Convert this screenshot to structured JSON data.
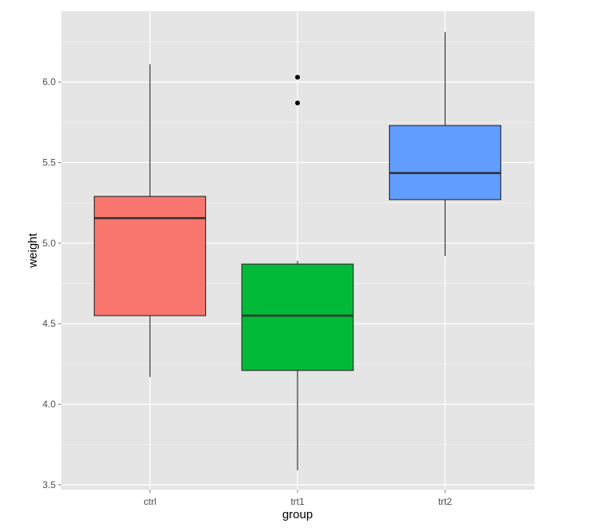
{
  "chart_data": {
    "type": "boxplot",
    "xlabel": "group",
    "ylabel": "weight",
    "ylim": [
      3.47,
      6.44
    ],
    "yticks": [
      3.5,
      4.0,
      4.5,
      5.0,
      5.5,
      6.0
    ],
    "ytick_labels": [
      "3.5",
      "4.0",
      "4.5",
      "5.0",
      "5.5",
      "6.0"
    ],
    "categories": [
      "ctrl",
      "trt1",
      "trt2"
    ],
    "grid": true,
    "legend": "none",
    "boxes": [
      {
        "category": "ctrl",
        "whisker_low": 4.17,
        "q1": 4.55,
        "median": 5.155,
        "q3": 5.29,
        "whisker_high": 6.11,
        "outliers": [],
        "fill": "#F8766D"
      },
      {
        "category": "trt1",
        "whisker_low": 3.59,
        "q1": 4.21,
        "median": 4.55,
        "q3": 4.87,
        "whisker_high": 4.89,
        "outliers": [
          5.87,
          6.03
        ],
        "fill": "#00BA38"
      },
      {
        "category": "trt2",
        "whisker_low": 4.92,
        "q1": 5.27,
        "median": 5.435,
        "q3": 5.73,
        "whisker_high": 6.31,
        "outliers": [],
        "fill": "#619CFF"
      }
    ]
  },
  "colors": {
    "panel_background": "#E5E5E5",
    "grid_major": "#FFFFFF",
    "grid_minor": "#F2F2F2",
    "box_outline": "#333333",
    "outlier": "#000000"
  }
}
